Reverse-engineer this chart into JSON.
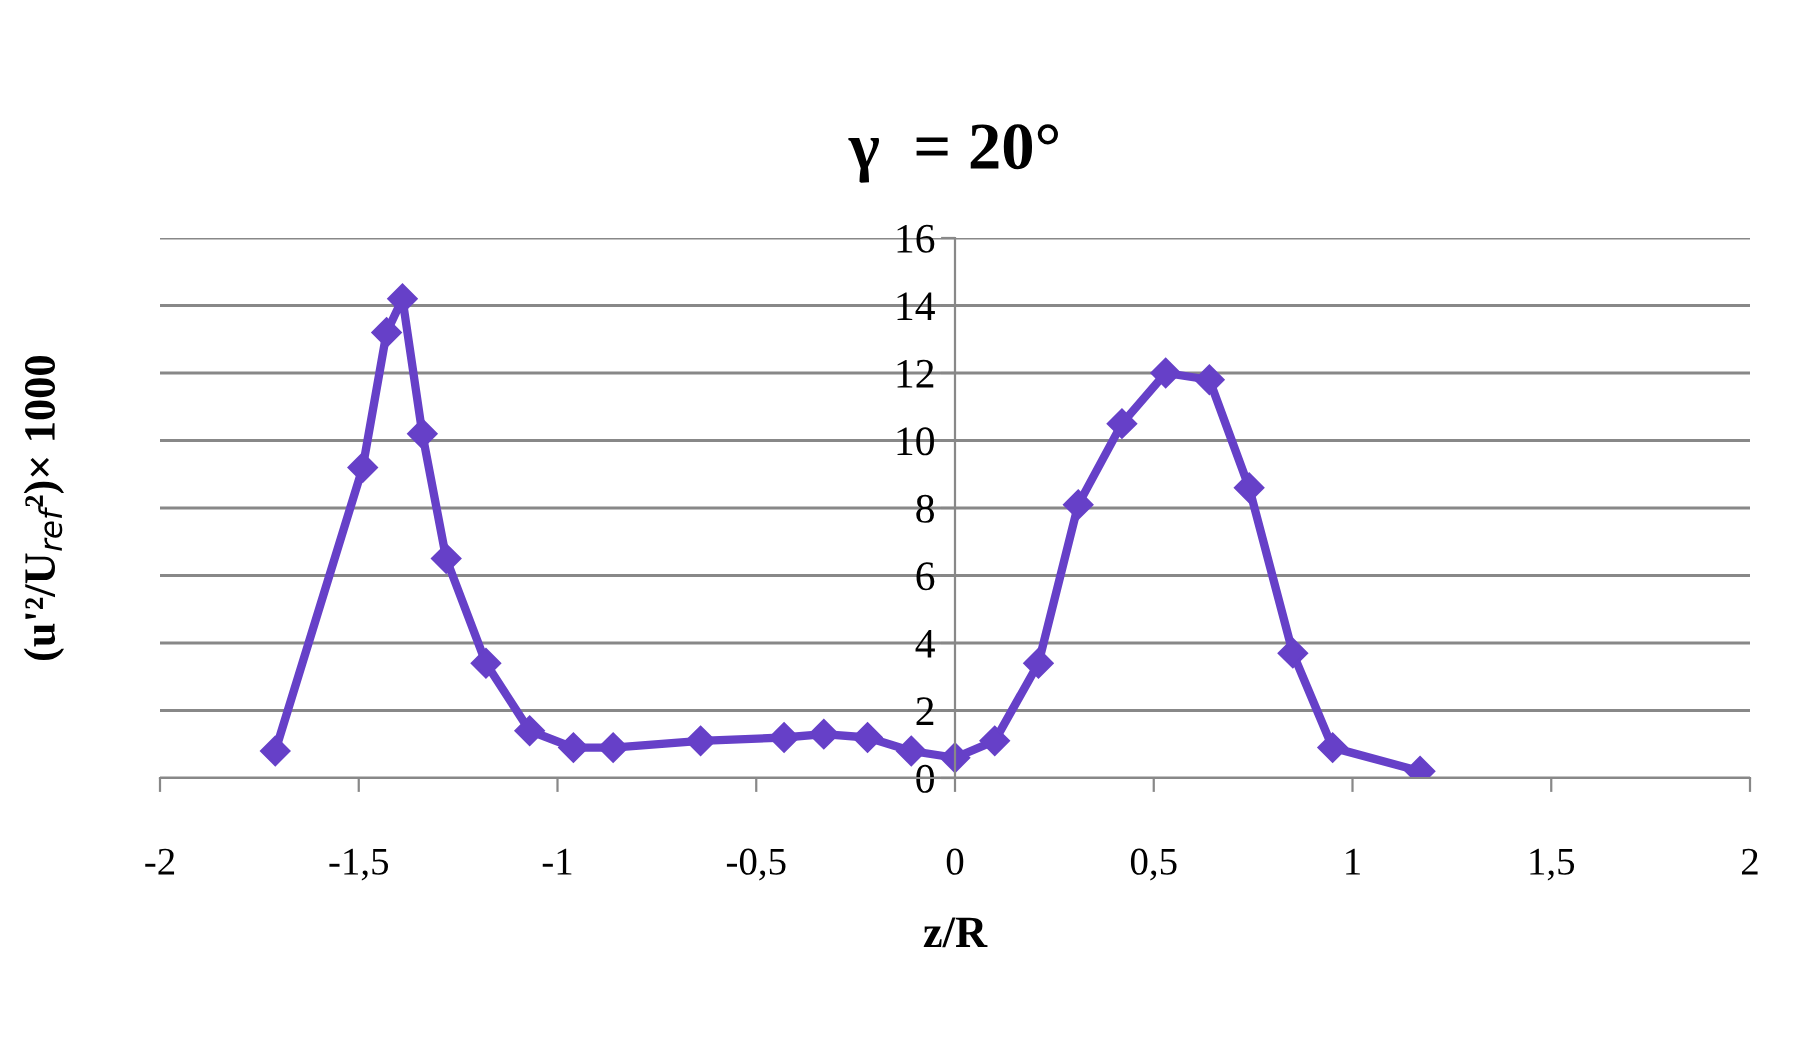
{
  "chart_data": {
    "type": "line",
    "title": "γ  = 20°",
    "xlabel": "z/R",
    "ylabel": "(u'²/U$_{ref}$²)× 1000",
    "x": [
      -1.71,
      -1.49,
      -1.43,
      -1.39,
      -1.34,
      -1.28,
      -1.18,
      -1.07,
      -0.96,
      -0.86,
      -0.64,
      -0.43,
      -0.33,
      -0.22,
      -0.11,
      0,
      0.1,
      0.21,
      0.31,
      0.42,
      0.53,
      0.64,
      0.74,
      0.85,
      0.95,
      1.17
    ],
    "series": [
      {
        "color": "#6640c8",
        "values": [
          0.8,
          9.2,
          13.2,
          14.2,
          10.2,
          6.5,
          3.4,
          1.4,
          0.9,
          0.9,
          1.1,
          1.2,
          1.3,
          1.2,
          0.8,
          0.6,
          1.1,
          3.4,
          8.1,
          10.5,
          12.0,
          11.8,
          8.6,
          3.7,
          0.9,
          0.2
        ]
      }
    ],
    "xlim": [
      -2,
      2
    ],
    "ylim": [
      0,
      16
    ],
    "xticks": [
      {
        "value": -2,
        "label": "-2"
      },
      {
        "value": -1.5,
        "label": "-1,5"
      },
      {
        "value": -1,
        "label": "-1"
      },
      {
        "value": -0.5,
        "label": "-0,5"
      },
      {
        "value": 0,
        "label": "0"
      },
      {
        "value": 0.5,
        "label": "0,5"
      },
      {
        "value": 1,
        "label": "1"
      },
      {
        "value": 1.5,
        "label": "1,5"
      },
      {
        "value": 2,
        "label": "2"
      }
    ],
    "yticks": [
      0,
      2,
      4,
      6,
      8,
      10,
      12,
      14,
      16
    ],
    "grid": "y",
    "marker": "diamond",
    "line_style": "solid"
  }
}
